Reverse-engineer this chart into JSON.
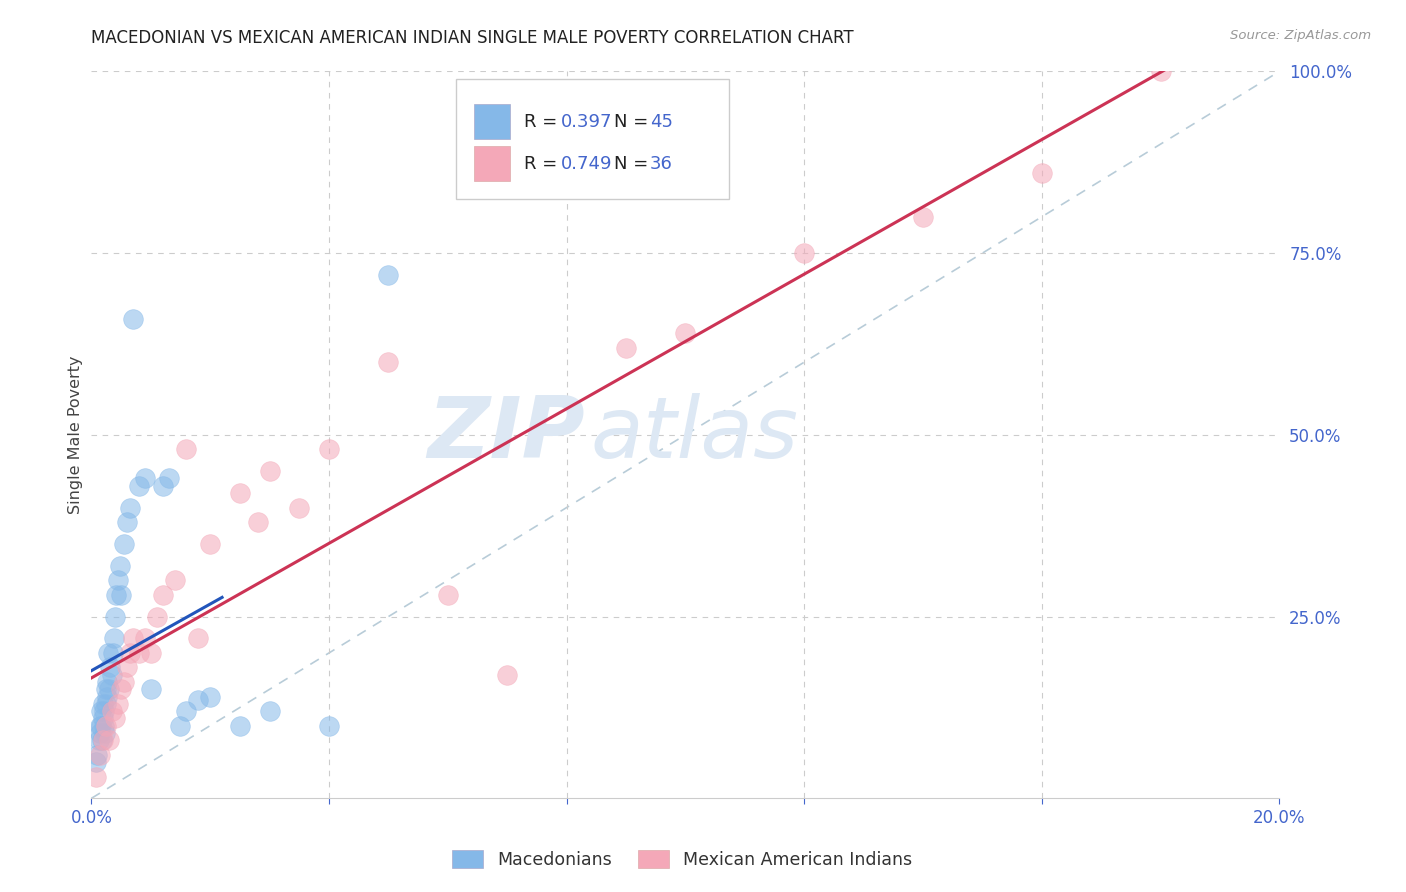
{
  "title": "MACEDONIAN VS MEXICAN AMERICAN INDIAN SINGLE MALE POVERTY CORRELATION CHART",
  "source": "Source: ZipAtlas.com",
  "ylabel": "Single Male Poverty",
  "xlim": [
    0.0,
    0.2
  ],
  "ylim": [
    0.0,
    1.0
  ],
  "xticks": [
    0.0,
    0.04,
    0.08,
    0.12,
    0.16,
    0.2
  ],
  "xticklabels": [
    "0.0%",
    "",
    "",
    "",
    "",
    "20.0%"
  ],
  "yticks_right": [
    0.0,
    0.25,
    0.5,
    0.75,
    1.0
  ],
  "ytick_labels_right": [
    "",
    "25.0%",
    "50.0%",
    "75.0%",
    "100.0%"
  ],
  "legend_blue_label": "Macedonians",
  "legend_pink_label": "Mexican American Indians",
  "blue_color": "#85b8e8",
  "pink_color": "#f4a8b8",
  "blue_line_color": "#2255bb",
  "pink_line_color": "#cc3355",
  "ref_line_color": "#b8ccd8",
  "title_color": "#222222",
  "source_color": "#999999",
  "axis_label_color": "#444444",
  "tick_color": "#4466cc",
  "grid_color": "#cccccc",
  "watermark_color": "#dde8f4",
  "legend_r_color": "#4466cc",
  "legend_text_color": "#222222",
  "macedonian_x": [
    0.0008,
    0.001,
    0.0012,
    0.0014,
    0.0015,
    0.0016,
    0.0017,
    0.0018,
    0.0019,
    0.002,
    0.0021,
    0.0022,
    0.0023,
    0.0024,
    0.0025,
    0.0026,
    0.0027,
    0.0028,
    0.003,
    0.0032,
    0.0034,
    0.0036,
    0.0038,
    0.004,
    0.0042,
    0.0045,
    0.0048,
    0.005,
    0.0055,
    0.006,
    0.0065,
    0.007,
    0.008,
    0.009,
    0.01,
    0.012,
    0.013,
    0.015,
    0.016,
    0.018,
    0.02,
    0.025,
    0.03,
    0.04,
    0.05
  ],
  "macedonian_y": [
    0.05,
    0.06,
    0.08,
    0.09,
    0.1,
    0.12,
    0.1,
    0.08,
    0.11,
    0.13,
    0.1,
    0.12,
    0.09,
    0.15,
    0.13,
    0.16,
    0.14,
    0.2,
    0.15,
    0.18,
    0.17,
    0.2,
    0.22,
    0.25,
    0.28,
    0.3,
    0.32,
    0.28,
    0.35,
    0.38,
    0.4,
    0.66,
    0.43,
    0.44,
    0.15,
    0.43,
    0.44,
    0.1,
    0.12,
    0.135,
    0.14,
    0.1,
    0.12,
    0.1,
    0.72
  ],
  "mexican_x": [
    0.0008,
    0.0015,
    0.002,
    0.0025,
    0.003,
    0.0035,
    0.004,
    0.0045,
    0.005,
    0.0055,
    0.006,
    0.0065,
    0.007,
    0.008,
    0.009,
    0.01,
    0.011,
    0.012,
    0.014,
    0.016,
    0.018,
    0.02,
    0.025,
    0.028,
    0.03,
    0.035,
    0.04,
    0.05,
    0.06,
    0.07,
    0.09,
    0.1,
    0.12,
    0.14,
    0.16,
    0.18
  ],
  "mexican_y": [
    0.03,
    0.06,
    0.08,
    0.1,
    0.08,
    0.12,
    0.11,
    0.13,
    0.15,
    0.16,
    0.18,
    0.2,
    0.22,
    0.2,
    0.22,
    0.2,
    0.25,
    0.28,
    0.3,
    0.48,
    0.22,
    0.35,
    0.42,
    0.38,
    0.45,
    0.4,
    0.48,
    0.6,
    0.28,
    0.17,
    0.62,
    0.64,
    0.75,
    0.8,
    0.86,
    1.0
  ],
  "blue_trend_x": [
    0.0,
    0.022
  ],
  "pink_trend_x": [
    0.0,
    0.2
  ]
}
